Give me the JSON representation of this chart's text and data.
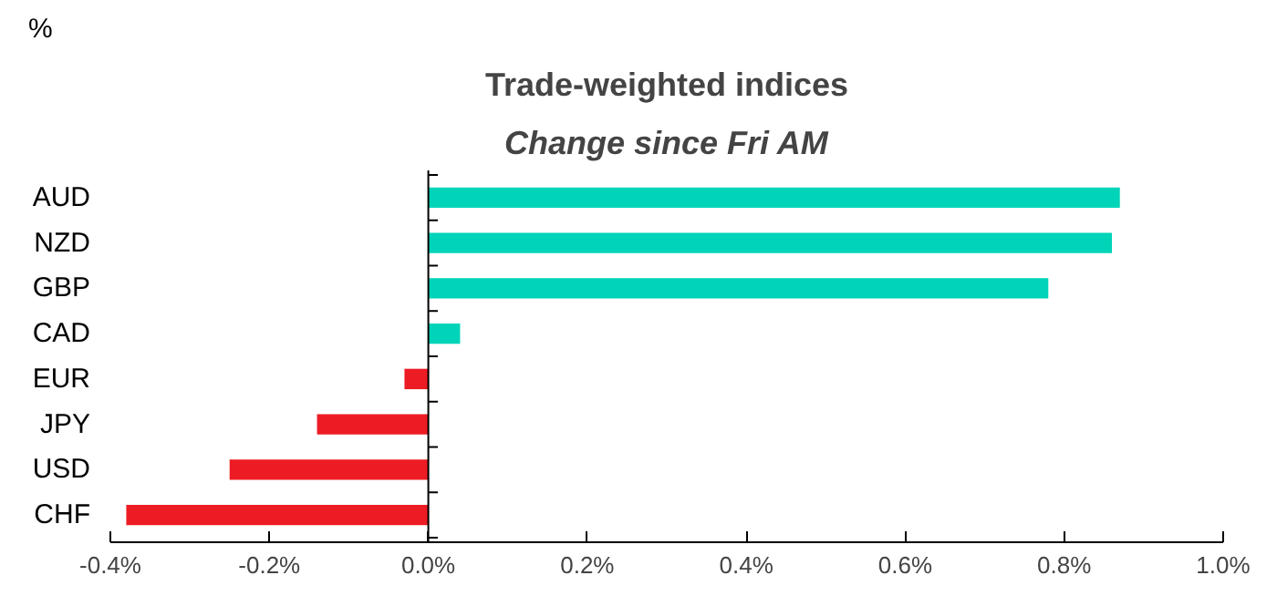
{
  "chart_data": {
    "type": "bar",
    "orientation": "horizontal",
    "title": "Trade-weighted indices",
    "subtitle": "Change since Fri AM",
    "ylabel": "%",
    "categories": [
      "AUD",
      "NZD",
      "GBP",
      "CAD",
      "EUR",
      "JPY",
      "USD",
      "CHF"
    ],
    "values": [
      0.87,
      0.86,
      0.78,
      0.04,
      -0.03,
      -0.14,
      -0.25,
      -0.38
    ],
    "colors": [
      "#00d4b8",
      "#00d4b8",
      "#00d4b8",
      "#00d4b8",
      "#ed1c24",
      "#ed1c24",
      "#ed1c24",
      "#ed1c24"
    ],
    "xlim": [
      -0.4,
      1.0
    ],
    "xticks": [
      {
        "value": -0.4,
        "label": "-0.4%"
      },
      {
        "value": -0.2,
        "label": "-0.2%"
      },
      {
        "value": 0.0,
        "label": "0.0%"
      },
      {
        "value": 0.2,
        "label": "0.2%"
      },
      {
        "value": 0.4,
        "label": "0.4%"
      },
      {
        "value": 0.6,
        "label": "0.6%"
      },
      {
        "value": 0.8,
        "label": "0.8%"
      },
      {
        "value": 1.0,
        "label": "1.0%"
      }
    ]
  }
}
